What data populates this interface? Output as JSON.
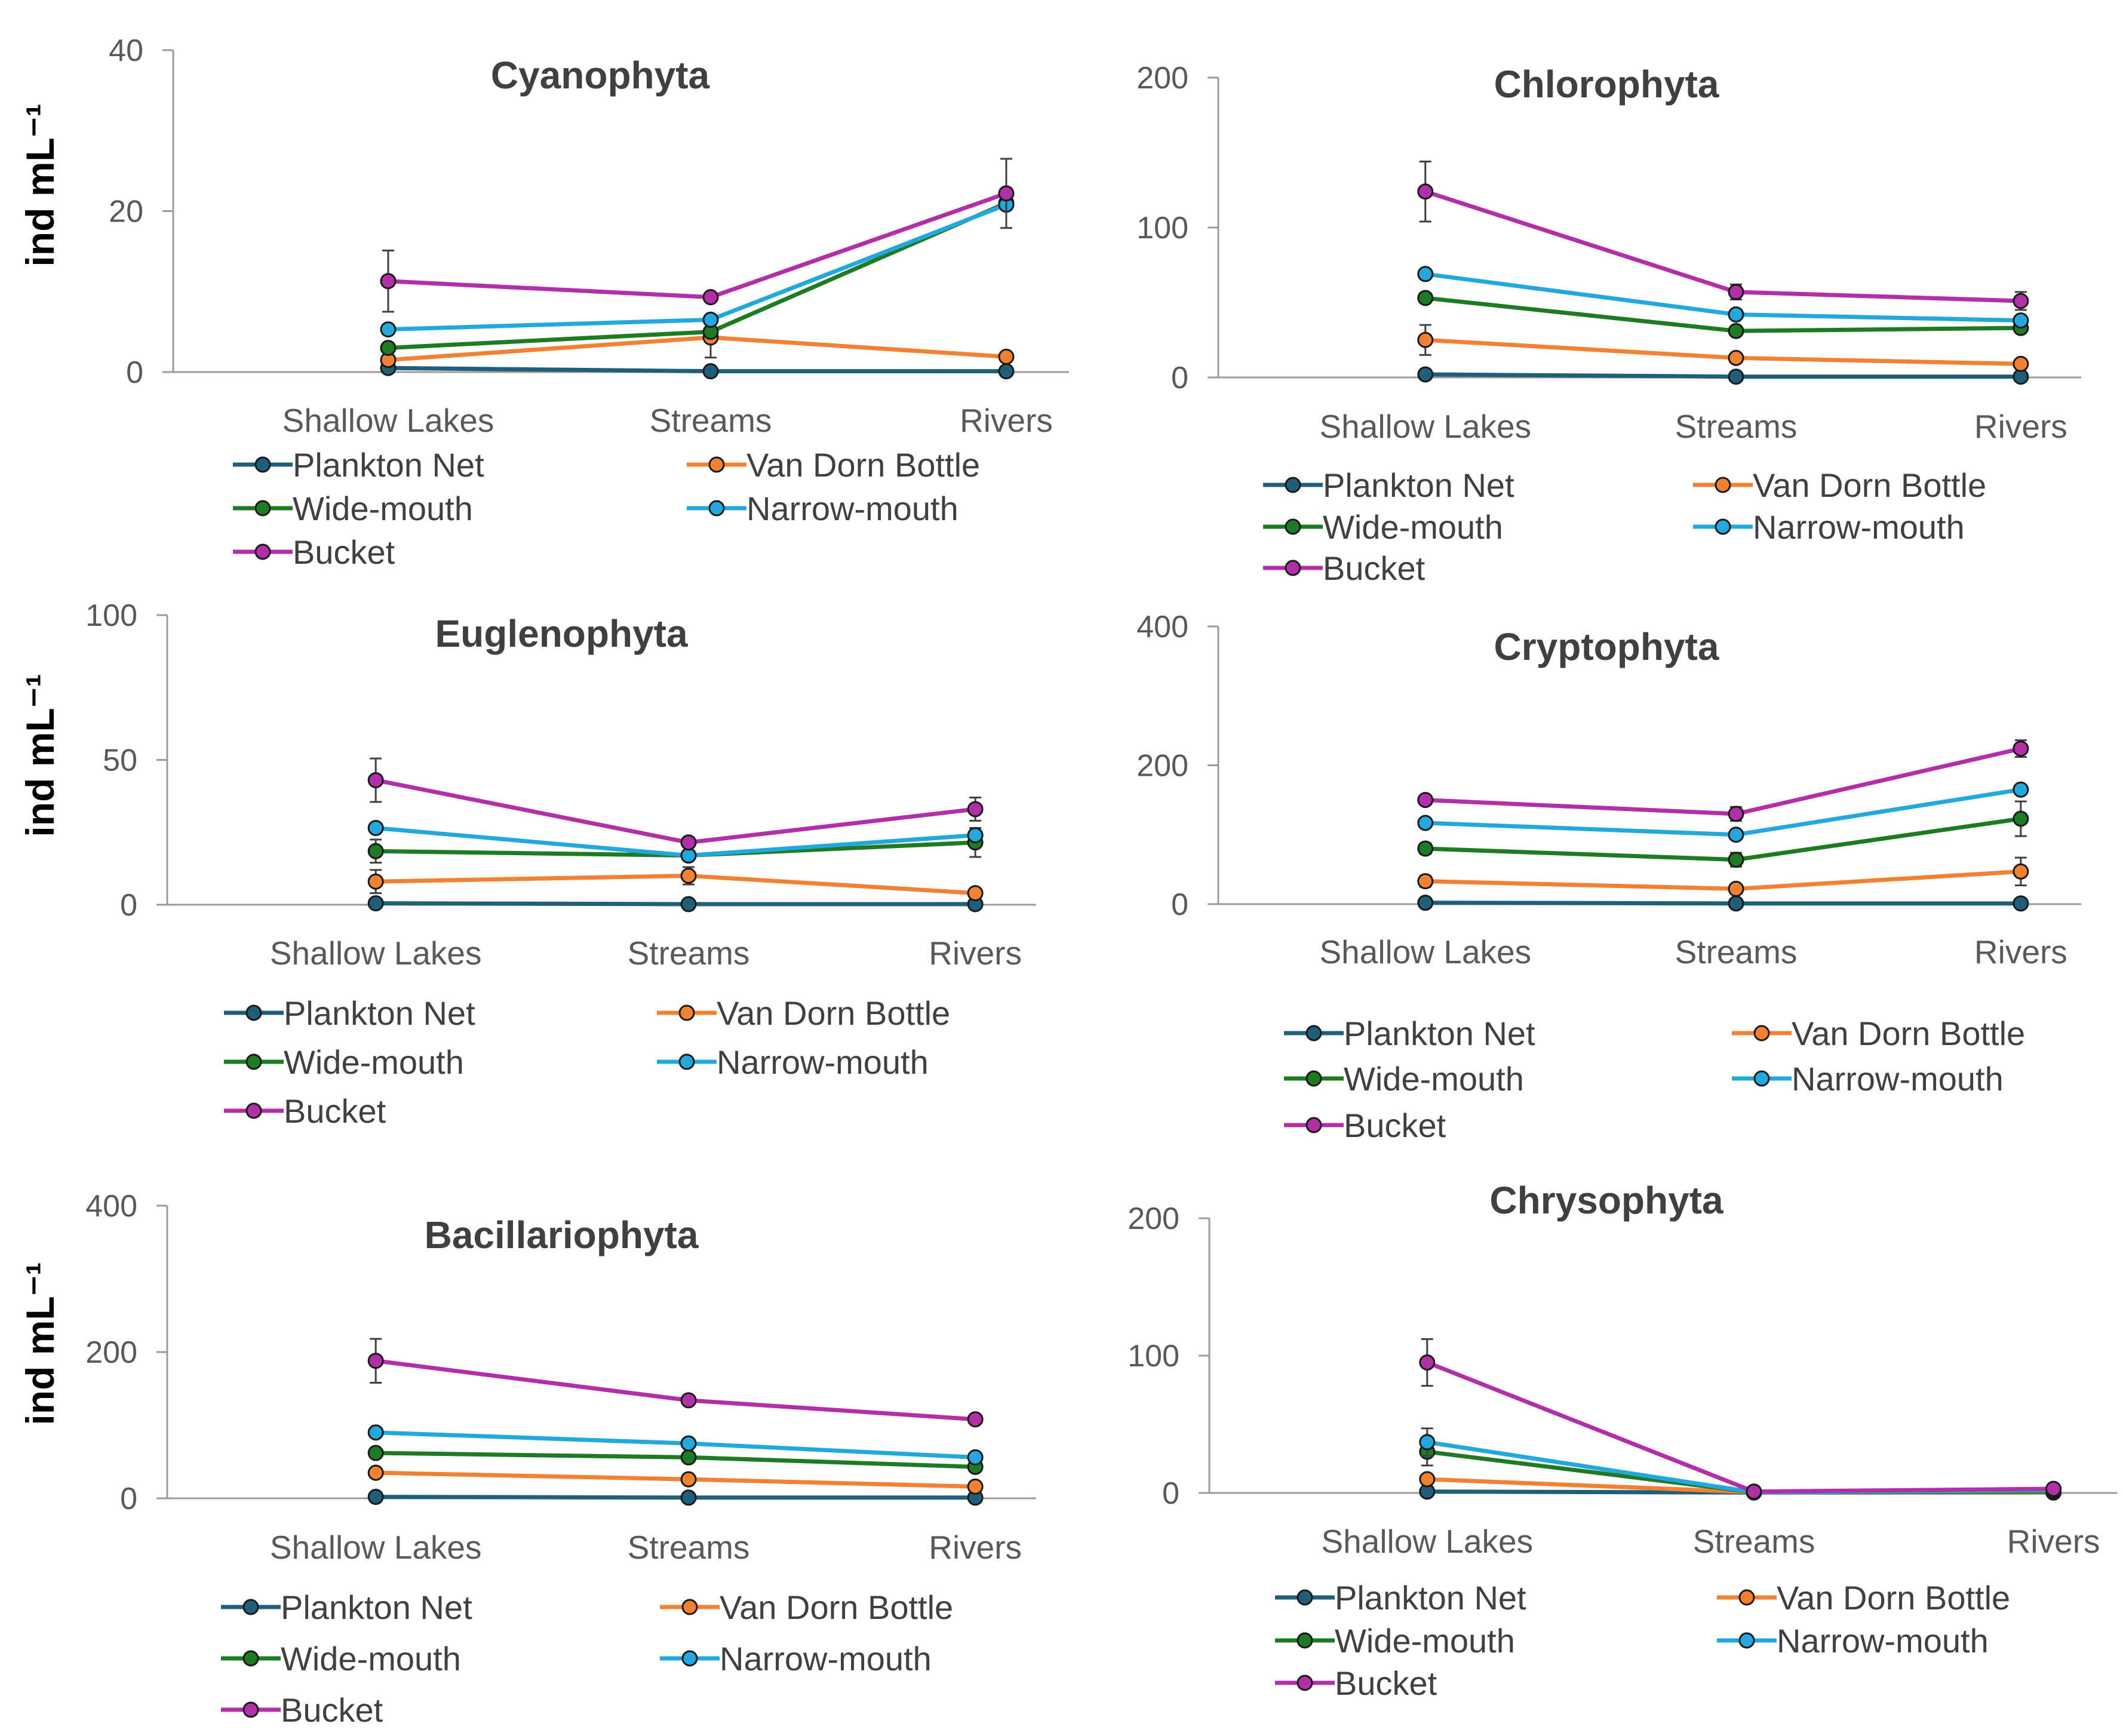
{
  "figure": {
    "categories": [
      "Shallow Lakes",
      "Streams",
      "Rivers"
    ],
    "series_colors": {
      "Plankton Net": "#1f5f7a",
      "Van Dorn Bottle": "#f28232",
      "Wide-mouth": "#1e7a23",
      "Narrow-mouth": "#22a8dc",
      "Bucket": "#b32fa8"
    },
    "marker_edge": "#1a1a1a"
  },
  "chart_data": [
    {
      "type": "line",
      "title": "Cyanophyta",
      "ylabel": "ind mL⁻¹",
      "ylim": [
        0,
        40
      ],
      "yticks": [
        "0",
        "20",
        "40"
      ],
      "categories": [
        "Shallow Lakes",
        "Streams",
        "Rivers"
      ],
      "legend_position": "bottom",
      "series": [
        {
          "name": "Plankton Net",
          "values": [
            0.5,
            0.1,
            0.1
          ],
          "errors": [
            0,
            0,
            0
          ]
        },
        {
          "name": "Van Dorn Bottle",
          "values": [
            1.5,
            4.3,
            1.9
          ],
          "errors": [
            0,
            2.5,
            0
          ]
        },
        {
          "name": "Wide-mouth",
          "values": [
            3.0,
            5.0,
            21.0
          ],
          "errors": [
            0,
            0,
            0
          ]
        },
        {
          "name": "Narrow-mouth",
          "values": [
            5.3,
            6.5,
            20.8
          ],
          "errors": [
            0,
            0,
            0
          ]
        },
        {
          "name": "Bucket",
          "values": [
            11.3,
            9.3,
            22.2
          ],
          "errors": [
            3.8,
            0,
            4.3
          ]
        }
      ]
    },
    {
      "type": "line",
      "title": "Chlorophyta",
      "ylabel": "",
      "ylim": [
        0,
        200
      ],
      "yticks": [
        "0",
        "100",
        "200"
      ],
      "categories": [
        "Shallow Lakes",
        "Streams",
        "Rivers"
      ],
      "legend_position": "bottom",
      "series": [
        {
          "name": "Plankton Net",
          "values": [
            2,
            0.5,
            0.5
          ],
          "errors": [
            0,
            0,
            0
          ]
        },
        {
          "name": "Van Dorn Bottle",
          "values": [
            25,
            13,
            9
          ],
          "errors": [
            10,
            0,
            0
          ]
        },
        {
          "name": "Wide-mouth",
          "values": [
            53,
            31,
            33
          ],
          "errors": [
            0,
            0,
            0
          ]
        },
        {
          "name": "Narrow-mouth",
          "values": [
            69,
            42,
            38
          ],
          "errors": [
            0,
            0,
            0
          ]
        },
        {
          "name": "Bucket",
          "values": [
            124,
            57,
            51
          ],
          "errors": [
            20,
            5,
            6
          ]
        }
      ]
    },
    {
      "type": "line",
      "title": "Euglenophyta",
      "ylabel": "ind mL⁻¹",
      "ylim": [
        0,
        100
      ],
      "yticks": [
        "0",
        "50",
        "100"
      ],
      "categories": [
        "Shallow Lakes",
        "Streams",
        "Rivers"
      ],
      "legend_position": "bottom",
      "series": [
        {
          "name": "Plankton Net",
          "values": [
            0.5,
            0.2,
            0.2
          ],
          "errors": [
            0,
            0,
            0
          ]
        },
        {
          "name": "Van Dorn Bottle",
          "values": [
            8,
            10,
            4
          ],
          "errors": [
            4,
            3,
            0
          ]
        },
        {
          "name": "Wide-mouth",
          "values": [
            18.5,
            17,
            21.5
          ],
          "errors": [
            4,
            0,
            5
          ]
        },
        {
          "name": "Narrow-mouth",
          "values": [
            26.5,
            17,
            24
          ],
          "errors": [
            0,
            0,
            0
          ]
        },
        {
          "name": "Bucket",
          "values": [
            43,
            21.5,
            33
          ],
          "errors": [
            7.5,
            0,
            4
          ]
        }
      ]
    },
    {
      "type": "line",
      "title": "Cryptophyta",
      "ylabel": "",
      "ylim": [
        0,
        400
      ],
      "yticks": [
        "0",
        "200",
        "400"
      ],
      "categories": [
        "Shallow Lakes",
        "Streams",
        "Rivers"
      ],
      "legend_position": "bottom",
      "series": [
        {
          "name": "Plankton Net",
          "values": [
            2,
            1,
            1
          ],
          "errors": [
            0,
            0,
            0
          ]
        },
        {
          "name": "Van Dorn Bottle",
          "values": [
            33,
            22,
            47
          ],
          "errors": [
            8,
            0,
            20
          ]
        },
        {
          "name": "Wide-mouth",
          "values": [
            80,
            64,
            123
          ],
          "errors": [
            8,
            10,
            25
          ]
        },
        {
          "name": "Narrow-mouth",
          "values": [
            117,
            100,
            165
          ],
          "errors": [
            0,
            0,
            0
          ]
        },
        {
          "name": "Bucket",
          "values": [
            150,
            130,
            224
          ],
          "errors": [
            0,
            10,
            12
          ]
        }
      ]
    },
    {
      "type": "line",
      "title": "Bacillariophyta",
      "ylabel": "ind mL⁻¹",
      "ylim": [
        0,
        400
      ],
      "yticks": [
        "0",
        "200",
        "400"
      ],
      "categories": [
        "Shallow Lakes",
        "Streams",
        "Rivers"
      ],
      "legend_position": "bottom",
      "series": [
        {
          "name": "Plankton Net",
          "values": [
            2,
            1,
            1
          ],
          "errors": [
            0,
            0,
            0
          ]
        },
        {
          "name": "Van Dorn Bottle",
          "values": [
            35,
            26,
            16
          ],
          "errors": [
            0,
            0,
            0
          ]
        },
        {
          "name": "Wide-mouth",
          "values": [
            62,
            56,
            43
          ],
          "errors": [
            0,
            0,
            0
          ]
        },
        {
          "name": "Narrow-mouth",
          "values": [
            90,
            75,
            56
          ],
          "errors": [
            0,
            0,
            0
          ]
        },
        {
          "name": "Bucket",
          "values": [
            188,
            134,
            108
          ],
          "errors": [
            30,
            0,
            0
          ]
        }
      ]
    },
    {
      "type": "line",
      "title": "Chrysophyta",
      "ylabel": "",
      "ylim": [
        0,
        200
      ],
      "yticks": [
        "0",
        "100",
        "200"
      ],
      "categories": [
        "Shallow Lakes",
        "Streams",
        "Rivers"
      ],
      "legend_position": "bottom",
      "series": [
        {
          "name": "Plankton Net",
          "values": [
            1,
            0.3,
            0.3
          ],
          "errors": [
            0,
            0,
            0
          ]
        },
        {
          "name": "Van Dorn Bottle",
          "values": [
            10,
            0.5,
            0.5
          ],
          "errors": [
            0,
            0,
            0
          ]
        },
        {
          "name": "Wide-mouth",
          "values": [
            30,
            0.5,
            1
          ],
          "errors": [
            10,
            0,
            0
          ]
        },
        {
          "name": "Narrow-mouth",
          "values": [
            37,
            0.5,
            2
          ],
          "errors": [
            10,
            0,
            0
          ]
        },
        {
          "name": "Bucket",
          "values": [
            95,
            1,
            3
          ],
          "errors": [
            17,
            0,
            0
          ]
        }
      ]
    }
  ]
}
